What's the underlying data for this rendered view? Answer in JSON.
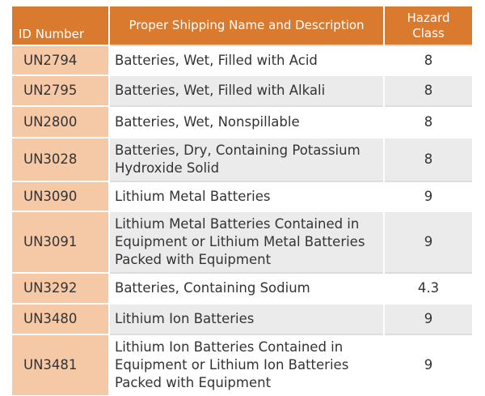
{
  "table": {
    "header": [
      "ID Number",
      "Proper Shipping Name and Description",
      "Hazard Class"
    ],
    "rows": [
      [
        "UN2794",
        "Batteries, Wet, Filled with Acid",
        "8"
      ],
      [
        "UN2795",
        "Batteries, Wet, Filled with Alkali",
        "8"
      ],
      [
        "UN2800",
        "Batteries, Wet, Nonspillable",
        "8"
      ],
      [
        "UN3028",
        "Batteries, Dry, Containing Potassium Hydroxide Solid",
        "8"
      ],
      [
        "UN3090",
        "Lithium Metal Batteries",
        "9"
      ],
      [
        "UN3091",
        "Lithium Metal Batteries Contained in Equipment or Lithium Metal Batteries Packed with Equipment",
        "9"
      ],
      [
        "UN3292",
        "Batteries, Containing Sodium",
        "4.3"
      ],
      [
        "UN3480",
        "Lithium Ion Batteries",
        "9"
      ],
      [
        "UN3481",
        "Lithium Ion Batteries Contained in Equipment or Lithium Ion Batteries Packed with Equipment",
        "9"
      ]
    ]
  }
}
